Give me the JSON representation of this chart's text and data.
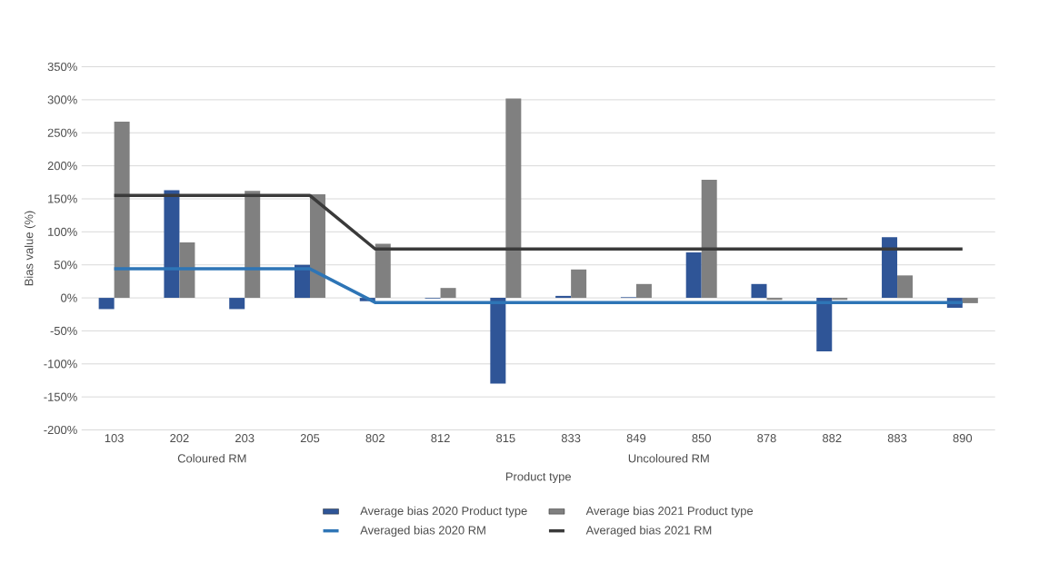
{
  "chart_data": {
    "type": "bar",
    "xlabel": "Product type",
    "ylabel": "Bias value (%)",
    "categories": [
      "103",
      "202",
      "203",
      "205",
      "802",
      "812",
      "815",
      "833",
      "849",
      "850",
      "878",
      "882",
      "883",
      "890"
    ],
    "series": [
      {
        "name": "Average bias 2020 Product type",
        "type": "bar",
        "color": "#2f5597",
        "values": [
          -17,
          163,
          -17,
          50,
          -5,
          -1,
          -130,
          3,
          1,
          69,
          21,
          -81,
          92,
          -15
        ]
      },
      {
        "name": "Average bias 2021 Product type",
        "type": "bar",
        "color": "#808080",
        "values": [
          267,
          84,
          162,
          157,
          82,
          15,
          302,
          43,
          21,
          179,
          -3,
          -3,
          34,
          -8
        ]
      },
      {
        "name": "Averaged bias 2020 RM",
        "type": "line",
        "color": "#2e75b6",
        "values": [
          44,
          44,
          44,
          44,
          -7,
          -7,
          -7,
          -7,
          -7,
          -7,
          -7,
          -7,
          -7,
          -7
        ]
      },
      {
        "name": "Averaged bias 2021 RM",
        "type": "line",
        "color": "#3a3a3a",
        "values": [
          155,
          155,
          155,
          155,
          74,
          74,
          74,
          74,
          74,
          74,
          74,
          74,
          74,
          74
        ]
      }
    ],
    "ylim": [
      -200,
      350
    ],
    "yticks": [
      {
        "value": -200,
        "label": "-200%"
      },
      {
        "value": -150,
        "label": "-150%"
      },
      {
        "value": -100,
        "label": "-100%"
      },
      {
        "value": -50,
        "label": "-50%"
      },
      {
        "value": 0,
        "label": "0%"
      },
      {
        "value": 50,
        "label": "50%"
      },
      {
        "value": 100,
        "label": "100%"
      },
      {
        "value": 150,
        "label": "150%"
      },
      {
        "value": 200,
        "label": "200%"
      },
      {
        "value": 250,
        "label": "250%"
      },
      {
        "value": 300,
        "label": "300%"
      },
      {
        "value": 350,
        "label": "350%"
      }
    ],
    "annotations": [
      "Coloured RM",
      "Uncoloured RM"
    ],
    "grid": "y",
    "legend": "bottom",
    "marker": "none"
  }
}
